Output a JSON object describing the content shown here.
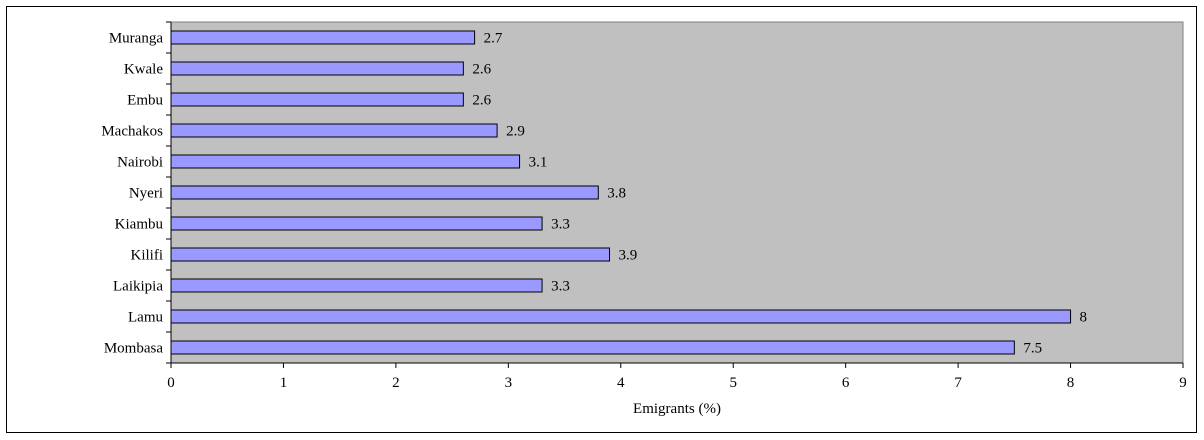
{
  "chart_data": {
    "type": "bar",
    "orientation": "horizontal",
    "categories": [
      "Muranga",
      "Kwale",
      "Embu",
      "Machakos",
      "Nairobi",
      "Nyeri",
      "Kiambu",
      "Kilifi",
      "Laikipia",
      "Lamu",
      "Mombasa"
    ],
    "values": [
      2.7,
      2.6,
      2.6,
      2.9,
      3.1,
      3.8,
      3.3,
      3.9,
      3.3,
      8,
      7.5
    ],
    "value_labels": [
      "2.7",
      "2.6",
      "2.6",
      "2.9",
      "3.1",
      "3.8",
      "3.3",
      "3.9",
      "3.3",
      "8",
      "7.5"
    ],
    "xlabel": "Emigrants (%)",
    "ylabel": "",
    "xlim": [
      0,
      9
    ],
    "xticks": [
      "0",
      "1",
      "2",
      "3",
      "4",
      "5",
      "6",
      "7",
      "8",
      "9"
    ],
    "grid": false,
    "legend": "none",
    "colors": {
      "bar_fill": "#9999ff",
      "bar_stroke": "#000000",
      "plot_background": "#c0c0c0"
    }
  }
}
